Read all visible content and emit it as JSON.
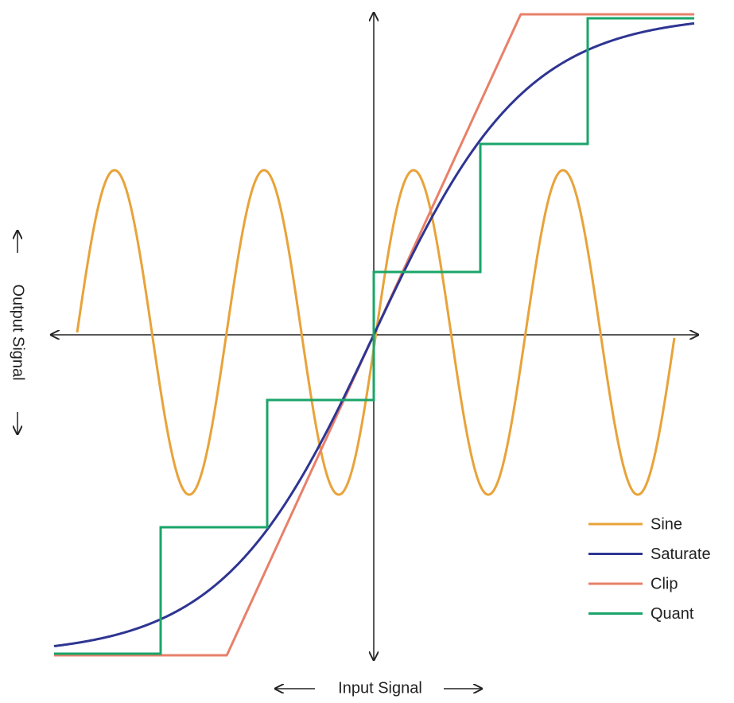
{
  "x_axis_label": "Input Signal",
  "y_axis_label": "Output Signal",
  "legend": [
    {
      "name": "Sine",
      "color": "#e8a33a"
    },
    {
      "name": "Saturate",
      "color": "#2e3592"
    },
    {
      "name": "Clip",
      "color": "#e8806a"
    },
    {
      "name": "Quant",
      "color": "#1aa56a"
    }
  ]
}
